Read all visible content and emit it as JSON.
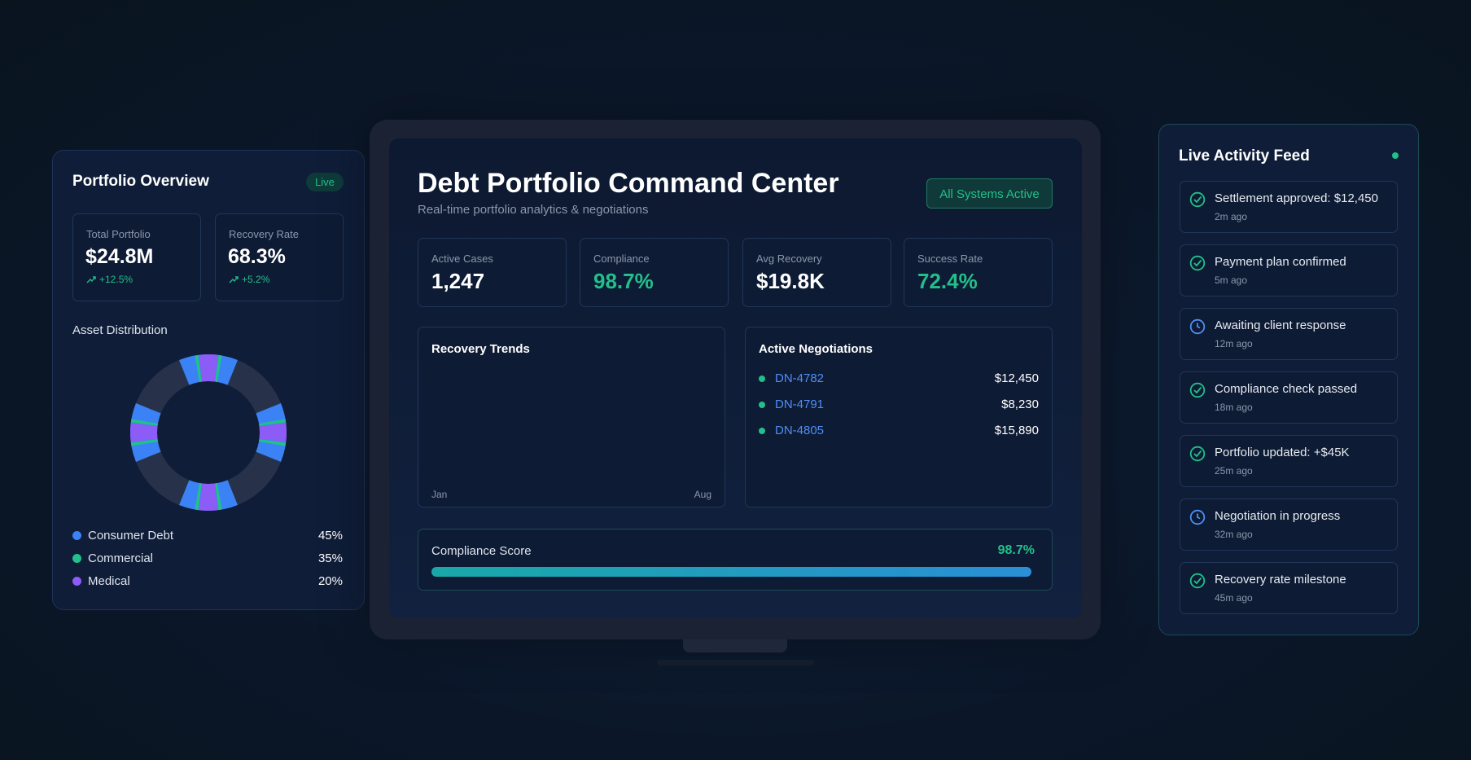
{
  "portfolio_overview": {
    "title": "Portfolio Overview",
    "badge": "Live",
    "stats": [
      {
        "label": "Total Portfolio",
        "value": "$24.8M",
        "change": "+12.5%"
      },
      {
        "label": "Recovery Rate",
        "value": "68.3%",
        "change": "+5.2%"
      }
    ],
    "asset_distribution": {
      "title": "Asset Distribution",
      "items": [
        {
          "label": "Consumer Debt",
          "share": "45%"
        },
        {
          "label": "Commercial",
          "share": "35%"
        },
        {
          "label": "Medical",
          "share": "20%"
        }
      ]
    }
  },
  "dashboard": {
    "title": "Debt Portfolio Command Center",
    "subtitle": "Real-time portfolio analytics & negotiations",
    "status": "All Systems Active",
    "kpis": [
      {
        "label": "Active Cases",
        "value": "1,247"
      },
      {
        "label": "Compliance",
        "value": "98.7%"
      },
      {
        "label": "Avg Recovery",
        "value": "$19.8K"
      },
      {
        "label": "Success Rate",
        "value": "72.4%"
      }
    ],
    "recovery_trends": {
      "title": "Recovery Trends",
      "x_start": "Jan",
      "x_end": "Aug"
    },
    "negotiations": {
      "title": "Active Negotiations",
      "rows": [
        {
          "id": "DN-4782",
          "amount": "$12,450"
        },
        {
          "id": "DN-4791",
          "amount": "$8,230"
        },
        {
          "id": "DN-4805",
          "amount": "$15,890"
        }
      ]
    },
    "compliance": {
      "label": "Compliance Score",
      "value": "98.7%"
    }
  },
  "activity_feed": {
    "title": "Live Activity Feed",
    "items": [
      {
        "text": "Settlement approved: $12,450",
        "time": "2m ago"
      },
      {
        "text": "Payment plan confirmed",
        "time": "5m ago"
      },
      {
        "text": "Awaiting client response",
        "time": "12m ago"
      },
      {
        "text": "Compliance check passed",
        "time": "18m ago"
      },
      {
        "text": "Portfolio updated: +$45K",
        "time": "25m ago"
      },
      {
        "text": "Negotiation in progress",
        "time": "32m ago"
      },
      {
        "text": "Recovery rate milestone",
        "time": "45m ago"
      }
    ]
  }
}
